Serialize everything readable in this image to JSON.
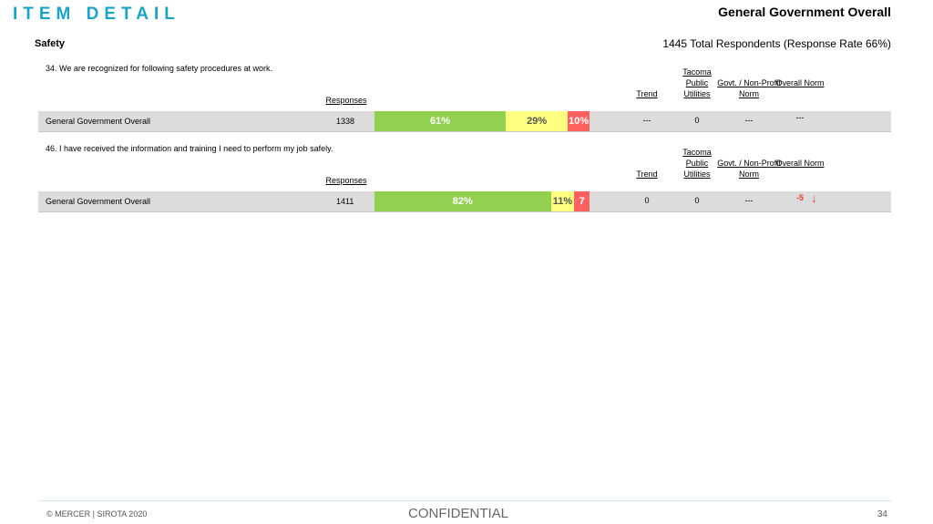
{
  "header": {
    "title": "ITEM DETAIL",
    "scope": "General Government Overall",
    "section": "Safety",
    "respondents": "1445 Total Respondents (Response Rate  66%)"
  },
  "columns": {
    "responses": "Responses",
    "trend": "Trend",
    "tacoma": "Tacoma Public Utilities",
    "govt": "Govt. / Non-Profit Norm",
    "overall": "Overall Norm"
  },
  "colors": [
    "#92d050",
    "#ffff80",
    "#ff6161"
  ],
  "items": [
    {
      "question": "34. We are recognized for following safety procedures at work.",
      "row_label": "General Government Overall",
      "responses": 1338,
      "segments": [
        {
          "value": 61,
          "label": "61%"
        },
        {
          "value": 29,
          "label": "29%"
        },
        {
          "value": 10,
          "label": "10%"
        }
      ],
      "trend": "---",
      "tacoma": "0",
      "govt": "---",
      "overall": "---"
    },
    {
      "question": "46. I have received the information and training I need to perform my job safely.",
      "row_label": "General Government Overall",
      "responses": 1411,
      "segments": [
        {
          "value": 82,
          "label": "82%"
        },
        {
          "value": 11,
          "label": "11%"
        },
        {
          "value": 7,
          "label": "7"
        }
      ],
      "trend": "0",
      "tacoma": "0",
      "govt": "---",
      "overall": "-5"
    }
  ],
  "footer": {
    "copyright": "© MERCER | SIROTA 2020",
    "confidential": "CONFIDENTIAL",
    "page": "34"
  }
}
